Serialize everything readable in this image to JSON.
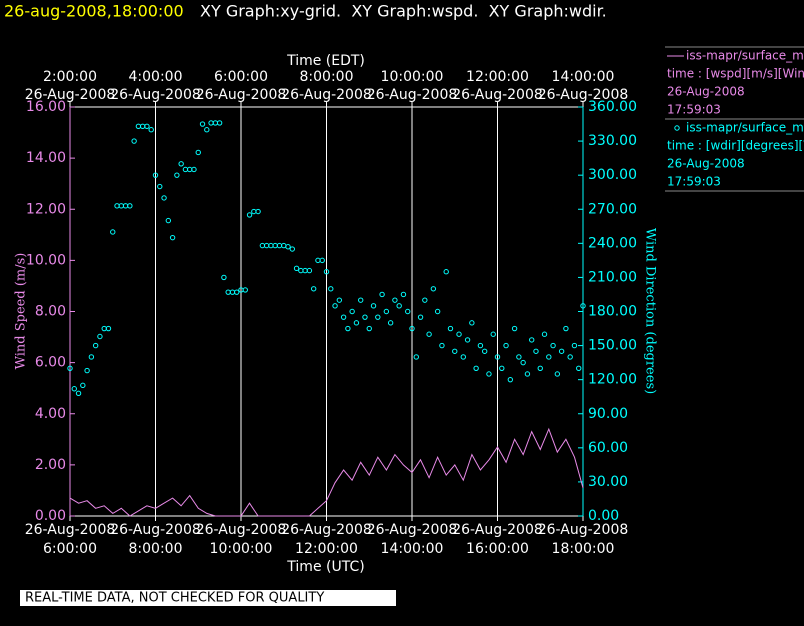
{
  "header": {
    "timestamp": "26-aug-2008,18:00:00",
    "graphs": "XY Graph:xy-grid.  XY Graph:wspd.  XY Graph:wdir."
  },
  "footer": "REAL-TIME DATA, NOT CHECKED FOR QUALITY",
  "chart_data": {
    "type": "line",
    "xlabel": "Time (UTC)",
    "x2label": "Time (EDT)",
    "ylabel": "Wind Speed (m/s)",
    "y2label": "Wind Direction (degrees)",
    "xlim": [
      6,
      18
    ],
    "xticks": [
      {
        "value": 6,
        "label": "6:00:00",
        "date": "26-Aug-2008"
      },
      {
        "value": 8,
        "label": "8:00:00",
        "date": "26-Aug-2008"
      },
      {
        "value": 10,
        "label": "10:00:00",
        "date": "26-Aug-2008"
      },
      {
        "value": 12,
        "label": "12:00:00",
        "date": "26-Aug-2008"
      },
      {
        "value": 14,
        "label": "14:00:00",
        "date": "26-Aug-2008"
      },
      {
        "value": 16,
        "label": "16:00:00",
        "date": "26-Aug-2008"
      },
      {
        "value": 18,
        "label": "18:00:00",
        "date": "26-Aug-2008"
      }
    ],
    "x2ticks": [
      {
        "value": 6,
        "label": "2:00:00",
        "date": "26-Aug-2008"
      },
      {
        "value": 8,
        "label": "4:00:00",
        "date": "26-Aug-2008"
      },
      {
        "value": 10,
        "label": "6:00:00",
        "date": "26-Aug-2008"
      },
      {
        "value": 12,
        "label": "8:00:00",
        "date": "26-Aug-2008"
      },
      {
        "value": 14,
        "label": "10:00:00",
        "date": "26-Aug-2008"
      },
      {
        "value": 16,
        "label": "12:00:00",
        "date": "26-Aug-2008"
      },
      {
        "value": 18,
        "label": "14:00:00",
        "date": "26-Aug-2008"
      }
    ],
    "ylim": [
      0,
      16
    ],
    "yticks": [
      {
        "value": 0,
        "label": "0.00"
      },
      {
        "value": 2,
        "label": "2.00"
      },
      {
        "value": 4,
        "label": "4.00"
      },
      {
        "value": 6,
        "label": "6.00"
      },
      {
        "value": 8,
        "label": "8.00"
      },
      {
        "value": 10,
        "label": "10.00"
      },
      {
        "value": 12,
        "label": "12.00"
      },
      {
        "value": 14,
        "label": "14.00"
      },
      {
        "value": 16,
        "label": "16.00"
      }
    ],
    "y2lim": [
      0,
      360
    ],
    "y2ticks": [
      {
        "value": 0,
        "label": "0.00"
      },
      {
        "value": 30,
        "label": "30.00"
      },
      {
        "value": 60,
        "label": "60.00"
      },
      {
        "value": 90,
        "label": "90.00"
      },
      {
        "value": 120,
        "label": "120.00"
      },
      {
        "value": 150,
        "label": "150.00"
      },
      {
        "value": 180,
        "label": "180.00"
      },
      {
        "value": 210,
        "label": "210.00"
      },
      {
        "value": 240,
        "label": "240.00"
      },
      {
        "value": 270,
        "label": "270.00"
      },
      {
        "value": 300,
        "label": "300.00"
      },
      {
        "value": 330,
        "label": "330.00"
      },
      {
        "value": 360,
        "label": "360.00"
      }
    ],
    "grid": "x",
    "series": [
      {
        "name": "iss-mapr/surface_m",
        "style": "line",
        "color": "#e88ae8",
        "legend_detail": [
          "time : [wspd][m/s][Wind",
          "26-Aug-2008",
          "17:59:03"
        ],
        "x": [
          6.0,
          6.2,
          6.4,
          6.6,
          6.8,
          7.0,
          7.2,
          7.4,
          7.6,
          7.8,
          8.0,
          8.2,
          8.4,
          8.6,
          8.8,
          9.0,
          9.2,
          9.4,
          9.6,
          9.8,
          10.0,
          10.2,
          10.4,
          10.6,
          10.8,
          11.0,
          11.2,
          11.4,
          11.6,
          11.8,
          12.0,
          12.2,
          12.4,
          12.6,
          12.8,
          13.0,
          13.2,
          13.4,
          13.6,
          13.8,
          14.0,
          14.2,
          14.4,
          14.6,
          14.8,
          15.0,
          15.2,
          15.4,
          15.6,
          15.8,
          16.0,
          16.2,
          16.4,
          16.6,
          16.8,
          17.0,
          17.2,
          17.4,
          17.6,
          17.8,
          18.0
        ],
        "values": [
          0.7,
          0.5,
          0.6,
          0.3,
          0.4,
          0.1,
          0.3,
          0.0,
          0.2,
          0.4,
          0.3,
          0.5,
          0.7,
          0.4,
          0.8,
          0.3,
          0.1,
          0.0,
          0.0,
          0.0,
          0.0,
          0.5,
          0.0,
          0.0,
          0.0,
          0.0,
          0.0,
          0.0,
          0.0,
          0.3,
          0.6,
          1.3,
          1.8,
          1.4,
          2.1,
          1.6,
          2.3,
          1.8,
          2.4,
          2.0,
          1.7,
          2.2,
          1.5,
          2.3,
          1.6,
          2.0,
          1.4,
          2.4,
          1.8,
          2.2,
          2.7,
          2.1,
          3.0,
          2.4,
          3.3,
          2.6,
          3.4,
          2.5,
          3.0,
          2.3,
          1.1
        ]
      },
      {
        "name": "iss-mapr/surface_m",
        "style": "scatter",
        "axis": "y2",
        "color": "#00ffff",
        "legend_detail": [
          "time : [wdir][degrees][V",
          "26-Aug-2008",
          "17:59:03"
        ],
        "x": [
          6.0,
          6.1,
          6.2,
          6.3,
          6.4,
          6.5,
          6.6,
          6.7,
          6.8,
          6.9,
          7.0,
          7.1,
          7.2,
          7.3,
          7.4,
          7.5,
          7.6,
          7.7,
          7.8,
          7.9,
          8.0,
          8.1,
          8.2,
          8.3,
          8.4,
          8.5,
          8.6,
          8.7,
          8.8,
          8.9,
          9.0,
          9.1,
          9.2,
          9.3,
          9.4,
          9.5,
          9.6,
          9.7,
          9.8,
          9.9,
          10.0,
          10.1,
          10.2,
          10.3,
          10.4,
          10.5,
          10.6,
          10.7,
          10.8,
          10.9,
          11.0,
          11.1,
          11.2,
          11.3,
          11.4,
          11.5,
          11.6,
          11.7,
          11.8,
          11.9,
          12.0,
          12.1,
          12.2,
          12.3,
          12.4,
          12.5,
          12.6,
          12.7,
          12.8,
          12.9,
          13.0,
          13.1,
          13.2,
          13.3,
          13.4,
          13.5,
          13.6,
          13.7,
          13.8,
          13.9,
          14.0,
          14.1,
          14.2,
          14.3,
          14.4,
          14.5,
          14.6,
          14.7,
          14.8,
          14.9,
          15.0,
          15.1,
          15.2,
          15.3,
          15.4,
          15.5,
          15.6,
          15.7,
          15.8,
          15.9,
          16.0,
          16.1,
          16.2,
          16.3,
          16.4,
          16.5,
          16.6,
          16.7,
          16.8,
          16.9,
          17.0,
          17.1,
          17.2,
          17.3,
          17.4,
          17.5,
          17.6,
          17.7,
          17.8,
          17.9,
          18.0
        ],
        "values": [
          130,
          112,
          108,
          115,
          128,
          140,
          150,
          158,
          165,
          165,
          250,
          273,
          273,
          273,
          273,
          330,
          343,
          343,
          343,
          340,
          300,
          290,
          280,
          260,
          245,
          300,
          310,
          305,
          305,
          305,
          320,
          345,
          340,
          346,
          346,
          346,
          210,
          197,
          197,
          197,
          199,
          199,
          265,
          268,
          268,
          238,
          238,
          238,
          238,
          238,
          238,
          237,
          235,
          218,
          216,
          216,
          216,
          200,
          225,
          225,
          215,
          200,
          185,
          190,
          175,
          165,
          180,
          170,
          190,
          175,
          165,
          185,
          175,
          195,
          180,
          170,
          190,
          185,
          195,
          180,
          165,
          140,
          175,
          190,
          160,
          200,
          180,
          150,
          215,
          165,
          145,
          160,
          140,
          155,
          170,
          130,
          150,
          145,
          125,
          160,
          140,
          130,
          150,
          120,
          165,
          140,
          135,
          125,
          155,
          145,
          130,
          160,
          140,
          150,
          125,
          145,
          165,
          140,
          150,
          130,
          185
        ]
      }
    ]
  }
}
